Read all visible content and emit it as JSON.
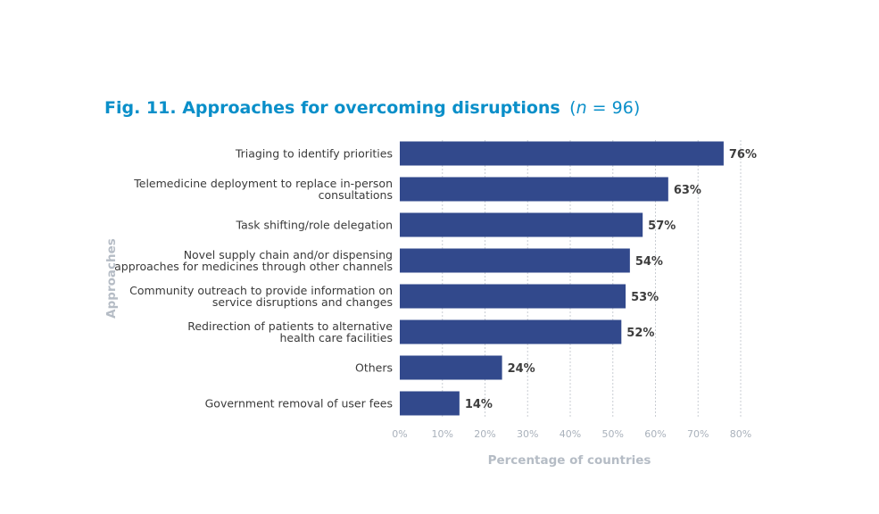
{
  "colors": {
    "title": "#0a8fc9",
    "bar": "#32498c",
    "grid": "#c9cdd3",
    "axis_title": "#b5bcc5"
  },
  "chart_data": {
    "type": "bar",
    "orientation": "horizontal",
    "title": "Fig. 11. Approaches for overcoming disruptions",
    "title_n": "(n = 96)",
    "title_n_parts": [
      "(",
      "n",
      " = 96)"
    ],
    "xlabel": "Percentage of countries",
    "ylabel": "Approaches",
    "xlim": [
      0,
      80
    ],
    "xticks": [
      0,
      10,
      20,
      30,
      40,
      50,
      60,
      70,
      80
    ],
    "xtick_labels": [
      "0%",
      "10%",
      "20%",
      "30%",
      "40%",
      "50%",
      "60%",
      "70%",
      "80%"
    ],
    "grid": "vertical dotted",
    "categories": [
      [
        "Triaging to identify priorities"
      ],
      [
        "Telemedicine deployment to replace in-person",
        "consultations"
      ],
      [
        "Task shifting/role delegation"
      ],
      [
        "Novel supply chain and/or dispensing",
        "approaches for medicines through other channels"
      ],
      [
        "Community outreach to provide information on",
        "service disruptions and changes"
      ],
      [
        "Redirection of patients to alternative",
        "health care facilities"
      ],
      [
        "Others"
      ],
      [
        "Government removal of user fees"
      ]
    ],
    "values": [
      76,
      63,
      57,
      54,
      53,
      52,
      24,
      14
    ],
    "value_labels": [
      "76%",
      "63%",
      "57%",
      "54%",
      "53%",
      "52%",
      "24%",
      "14%"
    ]
  }
}
